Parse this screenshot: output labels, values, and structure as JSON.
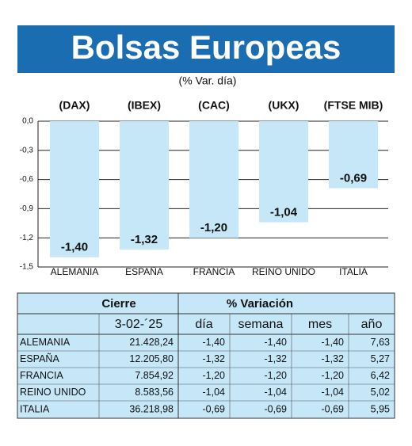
{
  "header": {
    "title": "Bolsas Europeas",
    "subtitle": "(% Var. día)"
  },
  "chart_data": {
    "type": "bar",
    "categories": [
      "ALEMANIA",
      "ESPAÑA",
      "FRANCIA",
      "REINO UNIDO",
      "ITALIA"
    ],
    "indices": [
      "(DAX)",
      "(IBEX)",
      "(CAC)",
      "(UKX)",
      "(FTSE MIB)"
    ],
    "values": [
      -1.4,
      -1.32,
      -1.2,
      -1.04,
      -0.69
    ],
    "value_labels": [
      "-1,40",
      "-1,32",
      "-1,20",
      "-1,04",
      "-0,69"
    ],
    "color": "#c6e7f8",
    "ylim": [
      -1.5,
      0
    ],
    "yticks": [
      {
        "value": 0,
        "label": "0,0"
      },
      {
        "value": -0.3,
        "label": "-0,3"
      },
      {
        "value": -0.6,
        "label": "-0,6"
      },
      {
        "value": -0.9,
        "label": "-0,9"
      },
      {
        "value": -1.2,
        "label": "-1,2"
      },
      {
        "value": -1.5,
        "label": "-1,5"
      }
    ],
    "grid": true
  },
  "table": {
    "header": [
      "Cierre",
      "% Variación"
    ],
    "columns": [
      "3-02-´25",
      "día",
      "semana",
      "mes",
      "año"
    ],
    "rows": [
      [
        "ALEMANIA",
        "21.428,24",
        "-1,40",
        "-1,40",
        "-1,40",
        "7,63"
      ],
      [
        "ESPAÑA",
        "12.205,80",
        "-1,32",
        "-1,32",
        "-1,32",
        "5,27"
      ],
      [
        "FRANCIA",
        "7.854,92",
        "-1,20",
        "-1,20",
        "-1,20",
        "6,42"
      ],
      [
        "REINO UNIDO",
        "8.583,56",
        "-1,04",
        "-1,04",
        "-1,04",
        "5,02"
      ],
      [
        "ITALIA",
        "36.218,98",
        "-0,69",
        "-0,69",
        "-0,69",
        "5,95"
      ]
    ]
  }
}
